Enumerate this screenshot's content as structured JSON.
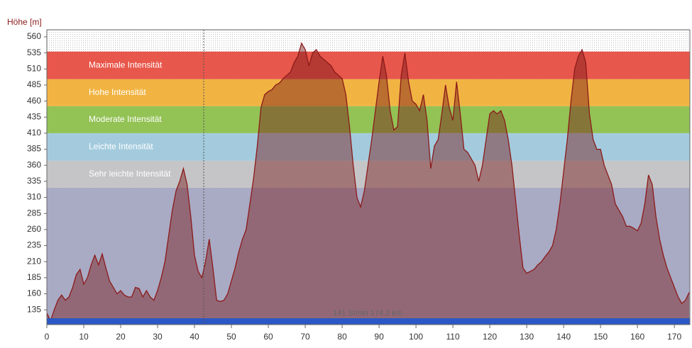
{
  "chart_data": {
    "type": "area",
    "y_label": "Höhe [m]",
    "x": [
      0,
      1,
      2,
      3,
      4,
      5,
      6,
      7,
      8,
      9,
      10,
      11,
      12,
      13,
      14,
      15,
      16,
      17,
      18,
      19,
      20,
      21,
      22,
      23,
      24,
      25,
      26,
      27,
      28,
      29,
      30,
      31,
      32,
      33,
      34,
      35,
      36,
      37,
      38,
      39,
      40,
      41,
      42,
      43,
      44,
      45,
      46,
      47,
      48,
      49,
      50,
      51,
      52,
      53,
      54,
      55,
      56,
      57,
      58,
      59,
      60,
      61,
      62,
      63,
      64,
      65,
      66,
      67,
      68,
      69,
      70,
      71,
      72,
      73,
      74,
      75,
      76,
      77,
      78,
      79,
      80,
      81,
      82,
      83,
      84,
      85,
      86,
      87,
      88,
      89,
      90,
      91,
      92,
      93,
      94,
      95,
      96,
      97,
      98,
      99,
      100,
      101,
      102,
      103,
      104,
      105,
      106,
      107,
      108,
      109,
      110,
      111,
      112,
      113,
      114,
      115,
      116,
      117,
      118,
      119,
      120,
      121,
      122,
      123,
      124,
      125,
      126,
      127,
      128,
      129,
      130,
      131,
      132,
      133,
      134,
      135,
      136,
      137,
      138,
      139,
      140,
      141,
      142,
      143,
      144,
      145,
      146,
      147,
      148,
      149,
      150,
      151,
      152,
      153,
      154,
      155,
      156,
      157,
      158,
      159,
      160,
      161,
      162,
      163,
      164,
      165,
      166,
      167,
      168,
      169,
      170,
      171,
      172,
      173,
      174
    ],
    "series": [
      {
        "color": "#8b1a1a",
        "values": [
          130,
          118,
          135,
          150,
          158,
          150,
          155,
          170,
          190,
          198,
          175,
          185,
          205,
          220,
          205,
          222,
          200,
          180,
          170,
          160,
          165,
          158,
          155,
          155,
          170,
          168,
          155,
          165,
          155,
          150,
          165,
          185,
          210,
          250,
          290,
          320,
          335,
          355,
          330,
          280,
          220,
          195,
          185,
          210,
          245,
          200,
          150,
          148,
          150,
          160,
          180,
          200,
          225,
          245,
          260,
          300,
          340,
          390,
          450,
          470,
          475,
          478,
          485,
          488,
          495,
          500,
          505,
          520,
          530,
          550,
          540,
          515,
          535,
          540,
          530,
          525,
          520,
          515,
          505,
          500,
          495,
          470,
          420,
          360,
          310,
          295,
          320,
          360,
          400,
          445,
          490,
          530,
          500,
          445,
          415,
          420,
          500,
          535,
          490,
          460,
          455,
          445,
          470,
          430,
          355,
          390,
          400,
          440,
          485,
          450,
          430,
          490,
          440,
          385,
          380,
          370,
          360,
          335,
          360,
          400,
          440,
          445,
          440,
          445,
          430,
          400,
          360,
          305,
          250,
          200,
          192,
          195,
          198,
          205,
          210,
          218,
          225,
          235,
          260,
          300,
          350,
          400,
          460,
          510,
          530,
          540,
          520,
          440,
          400,
          385,
          385,
          360,
          345,
          330,
          300,
          290,
          280,
          265,
          265,
          262,
          258,
          270,
          300,
          345,
          330,
          280,
          245,
          220,
          200,
          185,
          170,
          155,
          145,
          150,
          162
        ]
      }
    ],
    "bands": [
      {
        "label": "Maximale Intensität",
        "from": 494,
        "to": 537,
        "color": "#e8574b"
      },
      {
        "label": "Hohe Intensität",
        "from": 452,
        "to": 494,
        "color": "#f1b443"
      },
      {
        "label": "Moderate Intensität",
        "from": 410,
        "to": 452,
        "color": "#93c255"
      },
      {
        "label": "Leichte Intensität",
        "from": 367,
        "to": 410,
        "color": "#a3cbdd"
      },
      {
        "label": "Sehr leichte Intensität",
        "from": 325,
        "to": 367,
        "color": "#c5c5c7"
      }
    ],
    "plot_background": "#a9aac4",
    "annotation": "141 S/min 174.2 km",
    "cursor_x": 42.5,
    "xlim": [
      0,
      174.2
    ],
    "xticks": [
      0,
      10,
      20,
      30,
      40,
      50,
      60,
      70,
      80,
      90,
      100,
      110,
      120,
      130,
      140,
      150,
      160,
      170
    ],
    "ylim": [
      112,
      571
    ],
    "yticks": [
      135,
      160,
      185,
      210,
      235,
      260,
      285,
      310,
      335,
      360,
      385,
      410,
      435,
      460,
      485,
      510,
      535,
      560
    ]
  }
}
